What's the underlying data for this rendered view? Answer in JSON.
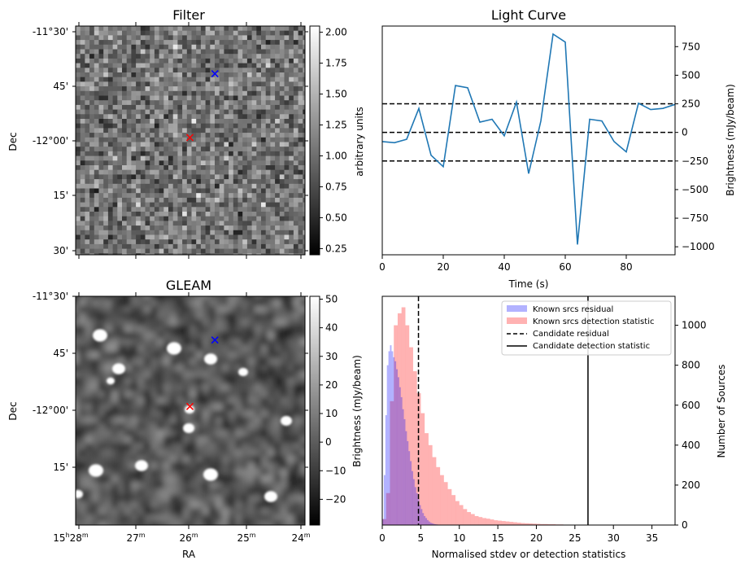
{
  "chart_data": [
    {
      "panel": "filter",
      "type": "heatmap",
      "title": "Filter",
      "xlabel": "",
      "ylabel": "Dec",
      "y_ticks": [
        "-11°30'",
        "45'",
        "-12°00'",
        "15'",
        "30'"
      ],
      "colorbar": {
        "label": "arbitrary units",
        "range": [
          0.2,
          2.05
        ],
        "ticks": [
          "0.25",
          "0.50",
          "0.75",
          "1.00",
          "1.25",
          "1.50",
          "1.75",
          "2.00"
        ],
        "tick_values": [
          0.25,
          0.5,
          0.75,
          1.0,
          1.25,
          1.5,
          1.75,
          2.0
        ]
      },
      "markers": [
        {
          "name": "blue-marker",
          "symbol": "x",
          "color": "#0000ff",
          "ra_min": 25.55,
          "dec_arcmin": -41.5
        },
        {
          "name": "red-marker",
          "symbol": "x",
          "color": "#ff0000",
          "ra_min": 26.0,
          "dec_arcmin": -59.0
        }
      ]
    },
    {
      "panel": "light-curve",
      "type": "line",
      "title": "Light Curve",
      "xlabel": "Time (s)",
      "ylabel": "Brightness (mJy/beam)",
      "xlim": [
        0,
        96
      ],
      "ylim": [
        -1070,
        930
      ],
      "x_ticks": [
        0,
        20,
        40,
        60,
        80
      ],
      "y_ticks": [
        -1000,
        -750,
        -500,
        -250,
        0,
        250,
        500,
        750
      ],
      "series": [
        {
          "name": "light-curve",
          "color": "#1f77b4",
          "x": [
            0,
            4,
            8,
            12,
            16,
            20,
            24,
            28,
            32,
            36,
            40,
            44,
            48,
            52,
            56,
            60,
            64,
            68,
            72,
            76,
            80,
            84,
            88,
            92,
            96
          ],
          "values": [
            -80,
            -90,
            -60,
            210,
            -200,
            -300,
            410,
            390,
            90,
            115,
            -30,
            265,
            -360,
            100,
            860,
            790,
            -980,
            115,
            100,
            -80,
            -170,
            255,
            200,
            210,
            245
          ]
        }
      ],
      "hlines": [
        {
          "y": 250,
          "style": "dashed"
        },
        {
          "y": 0,
          "style": "dashed"
        },
        {
          "y": -250,
          "style": "dashed"
        }
      ]
    },
    {
      "panel": "gleam",
      "type": "heatmap",
      "title": "GLEAM",
      "xlabel": "RA",
      "ylabel": "Dec",
      "x_ticks": [
        {
          "h": "15",
          "m": "28"
        },
        {
          "h": "",
          "m": "27"
        },
        {
          "h": "",
          "m": "26"
        },
        {
          "h": "",
          "m": "25"
        },
        {
          "h": "",
          "m": "24"
        }
      ],
      "y_ticks": [
        "-11°30'",
        "45'",
        "-12°00'",
        "15'"
      ],
      "colorbar": {
        "label": "Brightness (mJy/beam)",
        "range": [
          -29,
          51
        ],
        "ticks": [
          "−20",
          "−10",
          "0",
          "10",
          "20",
          "30",
          "40",
          "50"
        ],
        "tick_values": [
          -20,
          -10,
          0,
          10,
          20,
          30,
          40,
          50
        ]
      },
      "markers": [
        {
          "name": "blue-marker",
          "symbol": "x",
          "color": "#0000ff",
          "ra_min": 25.55,
          "dec_arcmin": -41.5
        },
        {
          "name": "red-marker",
          "symbol": "x",
          "color": "#ff0000",
          "ra_min": 26.0,
          "dec_arcmin": -59.0
        }
      ]
    },
    {
      "panel": "histogram",
      "type": "bar",
      "title": "",
      "xlabel": "Normalised stdev or detection statistics",
      "ylabel": "Number of Sources",
      "xlim": [
        0,
        38
      ],
      "ylim": [
        0,
        1145
      ],
      "x_ticks": [
        0,
        5,
        10,
        15,
        20,
        25,
        30,
        35
      ],
      "y_ticks": [
        0,
        200,
        400,
        600,
        800,
        1000
      ],
      "series": [
        {
          "name": "Known srcs residual",
          "color": "#0000ff",
          "bin_start": 0,
          "bin_width": 0.2,
          "values": [
            30,
            250,
            550,
            800,
            870,
            900,
            870,
            840,
            820,
            780,
            740,
            690,
            640,
            580,
            530,
            470,
            420,
            370,
            320,
            270,
            230,
            190,
            160,
            130,
            100,
            80,
            60,
            45,
            35,
            25,
            18,
            12,
            9,
            6,
            4,
            3,
            2,
            1
          ]
        },
        {
          "name": "Known srcs detection statistic",
          "color": "#ff0000",
          "bin_start": 0,
          "bin_width": 0.5,
          "values": [
            30,
            160,
            620,
            1000,
            1060,
            1090,
            1000,
            890,
            770,
            660,
            560,
            460,
            400,
            340,
            290,
            250,
            215,
            180,
            150,
            120,
            100,
            80,
            65,
            55,
            45,
            40,
            35,
            32,
            28,
            24,
            22,
            20,
            18,
            16,
            14,
            12,
            10,
            9,
            8,
            7,
            6,
            5,
            5,
            4,
            4,
            3,
            3,
            2,
            2,
            2,
            2,
            2,
            2,
            1,
            1,
            1,
            1,
            1,
            1,
            1,
            1,
            1,
            1,
            1,
            1,
            1,
            1,
            1,
            1,
            1,
            1,
            1,
            1,
            1,
            1,
            1
          ]
        }
      ],
      "vlines": [
        {
          "name": "Candidate residual",
          "x": 4.7,
          "style": "dashed"
        },
        {
          "name": "Candidate detection statistic",
          "x": 26.7,
          "style": "solid"
        }
      ],
      "legend": {
        "position": "top-right",
        "entries": [
          "Known srcs residual",
          "Known srcs detection statistic",
          "Candidate residual",
          "Candidate detection statistic"
        ]
      }
    }
  ],
  "colors": {
    "line": "#1f77b4",
    "residual_fill": "#0000ff",
    "detection_fill": "#ff0000"
  }
}
